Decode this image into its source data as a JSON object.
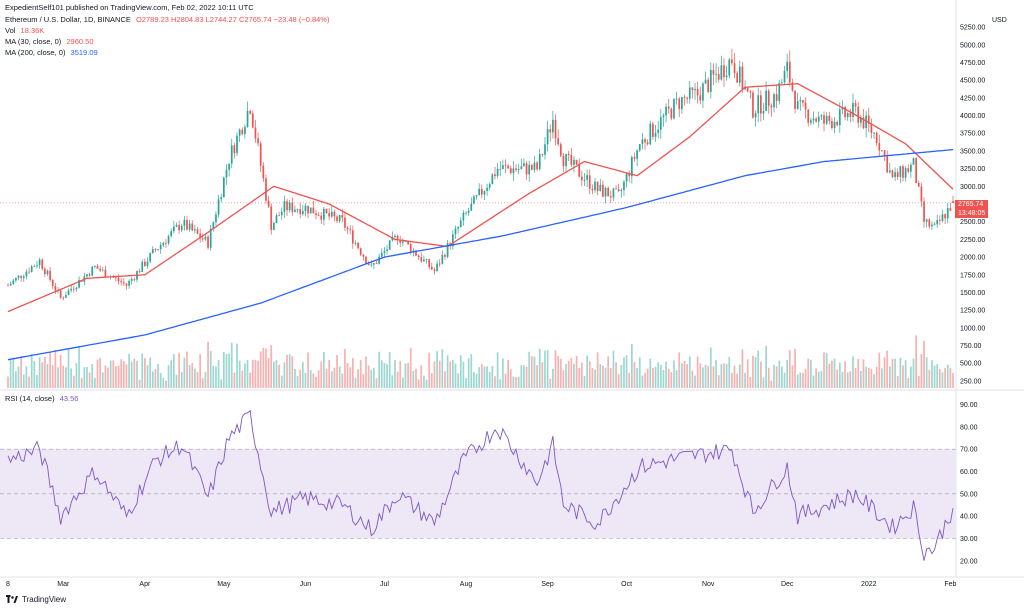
{
  "header": {
    "published": "ExpedientSelf101 published on TradingView.com, Feb 02, 2022 10:11 UTC",
    "symbol": "Ethereum / U.S. Dollar, 1D, BINANCE",
    "ohlc": "O2789.23  H2804.83  L2744.27  C2765.74  −23.48 (−0.84%)",
    "vol_label": "Vol",
    "vol_value": "18.36K",
    "ma30_label": "MA (30, close, 0)",
    "ma30_value": "2960.50",
    "ma200_label": "MA (200, close, 0)",
    "ma200_value": "3519.09",
    "rsi_label": "RSI (14, close)",
    "rsi_value": "43.56"
  },
  "footer": {
    "brand": "TradingView"
  },
  "colors": {
    "up": "#26a69a",
    "down": "#ef5350",
    "ma30": "#ef5350",
    "ma200": "#2962ff",
    "rsi": "#7e57c2",
    "rsi_band": "#ede7f6"
  },
  "chart_data": [
    {
      "type": "candlestick",
      "currency": "USD",
      "y_ticks": [
        250,
        500,
        750,
        1000,
        1250,
        1500,
        1750,
        2000,
        2250,
        2500,
        2750,
        3000,
        3250,
        3500,
        3750,
        4000,
        4250,
        4500,
        4750,
        5000,
        5250
      ],
      "ylim": [
        150,
        5350
      ],
      "x_labels": [
        "8",
        "Mar",
        "Apr",
        "May",
        "Jun",
        "Jul",
        "Aug",
        "Sep",
        "Oct",
        "Nov",
        "Dec",
        "2022",
        "Feb"
      ],
      "x_label_dates": [
        "2021-02-08",
        "2021-03-01",
        "2021-04-01",
        "2021-05-01",
        "2021-06-01",
        "2021-07-01",
        "2021-08-01",
        "2021-09-01",
        "2021-10-01",
        "2021-11-01",
        "2021-12-01",
        "2022-01-01",
        "2022-02-01"
      ],
      "close_anchors": [
        {
          "date": "2021-02-08",
          "close": 1600
        },
        {
          "date": "2021-02-20",
          "close": 1950
        },
        {
          "date": "2021-02-28",
          "close": 1420
        },
        {
          "date": "2021-03-13",
          "close": 1860
        },
        {
          "date": "2021-03-25",
          "close": 1600
        },
        {
          "date": "2021-04-05",
          "close": 2100
        },
        {
          "date": "2021-04-15",
          "close": 2480
        },
        {
          "date": "2021-04-25",
          "close": 2200
        },
        {
          "date": "2021-05-03",
          "close": 3400
        },
        {
          "date": "2021-05-11",
          "close": 4150
        },
        {
          "date": "2021-05-19",
          "close": 2450
        },
        {
          "date": "2021-05-24",
          "close": 2700
        },
        {
          "date": "2021-06-01",
          "close": 2700
        },
        {
          "date": "2021-06-15",
          "close": 2500
        },
        {
          "date": "2021-06-26",
          "close": 1850
        },
        {
          "date": "2021-07-06",
          "close": 2300
        },
        {
          "date": "2021-07-20",
          "close": 1800
        },
        {
          "date": "2021-07-31",
          "close": 2550
        },
        {
          "date": "2021-08-13",
          "close": 3250
        },
        {
          "date": "2021-08-28",
          "close": 3250
        },
        {
          "date": "2021-09-03",
          "close": 3950
        },
        {
          "date": "2021-09-07",
          "close": 3400
        },
        {
          "date": "2021-09-20",
          "close": 2950
        },
        {
          "date": "2021-09-28",
          "close": 2850
        },
        {
          "date": "2021-10-06",
          "close": 3600
        },
        {
          "date": "2021-10-21",
          "close": 4200
        },
        {
          "date": "2021-10-28",
          "close": 4300
        },
        {
          "date": "2021-11-10",
          "close": 4800
        },
        {
          "date": "2021-11-18",
          "close": 4100
        },
        {
          "date": "2021-11-27",
          "close": 4300
        },
        {
          "date": "2021-12-01",
          "close": 4650
        },
        {
          "date": "2021-12-05",
          "close": 4100
        },
        {
          "date": "2021-12-15",
          "close": 3900
        },
        {
          "date": "2021-12-27",
          "close": 4050
        },
        {
          "date": "2022-01-04",
          "close": 3700
        },
        {
          "date": "2022-01-10",
          "close": 3100
        },
        {
          "date": "2022-01-18",
          "close": 3300
        },
        {
          "date": "2022-01-22",
          "close": 2500
        },
        {
          "date": "2022-01-26",
          "close": 2400
        },
        {
          "date": "2022-02-02",
          "close": 2766
        }
      ],
      "ma30_anchors": [
        {
          "date": "2021-02-08",
          "value": 1230
        },
        {
          "date": "2021-03-10",
          "value": 1700
        },
        {
          "date": "2021-04-01",
          "value": 1750
        },
        {
          "date": "2021-04-25",
          "value": 2350
        },
        {
          "date": "2021-05-20",
          "value": 3000
        },
        {
          "date": "2021-06-10",
          "value": 2750
        },
        {
          "date": "2021-07-05",
          "value": 2250
        },
        {
          "date": "2021-07-25",
          "value": 2150
        },
        {
          "date": "2021-08-25",
          "value": 2900
        },
        {
          "date": "2021-09-15",
          "value": 3350
        },
        {
          "date": "2021-10-05",
          "value": 3150
        },
        {
          "date": "2021-10-25",
          "value": 3700
        },
        {
          "date": "2021-11-15",
          "value": 4400
        },
        {
          "date": "2021-12-05",
          "value": 4450
        },
        {
          "date": "2021-12-25",
          "value": 4050
        },
        {
          "date": "2022-01-15",
          "value": 3600
        },
        {
          "date": "2022-02-02",
          "value": 2960
        }
      ],
      "ma200_anchors": [
        {
          "date": "2021-02-08",
          "value": 550
        },
        {
          "date": "2021-04-01",
          "value": 900
        },
        {
          "date": "2021-05-15",
          "value": 1350
        },
        {
          "date": "2021-07-01",
          "value": 2000
        },
        {
          "date": "2021-08-15",
          "value": 2300
        },
        {
          "date": "2021-10-01",
          "value": 2700
        },
        {
          "date": "2021-11-15",
          "value": 3150
        },
        {
          "date": "2021-12-15",
          "value": 3350
        },
        {
          "date": "2022-02-02",
          "value": 3519
        }
      ],
      "last_price": "2765.74",
      "countdown": "13:48:05"
    },
    {
      "type": "line",
      "name": "RSI (14, close)",
      "y_ticks": [
        20.0,
        30.0,
        40.0,
        50.0,
        60.0,
        70.0,
        80.0,
        90.0
      ],
      "ylim": [
        15,
        92
      ],
      "band": [
        30,
        70
      ],
      "midline": 50,
      "anchors": [
        {
          "date": "2021-02-08",
          "value": 65
        },
        {
          "date": "2021-02-20",
          "value": 70
        },
        {
          "date": "2021-02-28",
          "value": 40
        },
        {
          "date": "2021-03-13",
          "value": 60
        },
        {
          "date": "2021-03-25",
          "value": 40
        },
        {
          "date": "2021-04-05",
          "value": 65
        },
        {
          "date": "2021-04-15",
          "value": 72
        },
        {
          "date": "2021-04-25",
          "value": 48
        },
        {
          "date": "2021-05-03",
          "value": 75
        },
        {
          "date": "2021-05-11",
          "value": 85
        },
        {
          "date": "2021-05-19",
          "value": 42
        },
        {
          "date": "2021-06-01",
          "value": 48
        },
        {
          "date": "2021-06-15",
          "value": 45
        },
        {
          "date": "2021-06-26",
          "value": 34
        },
        {
          "date": "2021-07-06",
          "value": 50
        },
        {
          "date": "2021-07-20",
          "value": 37
        },
        {
          "date": "2021-07-31",
          "value": 65
        },
        {
          "date": "2021-08-13",
          "value": 80
        },
        {
          "date": "2021-08-28",
          "value": 55
        },
        {
          "date": "2021-09-03",
          "value": 72
        },
        {
          "date": "2021-09-07",
          "value": 45
        },
        {
          "date": "2021-09-20",
          "value": 37
        },
        {
          "date": "2021-10-06",
          "value": 62
        },
        {
          "date": "2021-10-21",
          "value": 66
        },
        {
          "date": "2021-11-10",
          "value": 70
        },
        {
          "date": "2021-11-18",
          "value": 42
        },
        {
          "date": "2021-12-01",
          "value": 62
        },
        {
          "date": "2021-12-05",
          "value": 40
        },
        {
          "date": "2021-12-27",
          "value": 50
        },
        {
          "date": "2022-01-10",
          "value": 35
        },
        {
          "date": "2022-01-18",
          "value": 44
        },
        {
          "date": "2022-01-22",
          "value": 24
        },
        {
          "date": "2022-01-26",
          "value": 26
        },
        {
          "date": "2022-02-02",
          "value": 43.56
        }
      ]
    }
  ]
}
